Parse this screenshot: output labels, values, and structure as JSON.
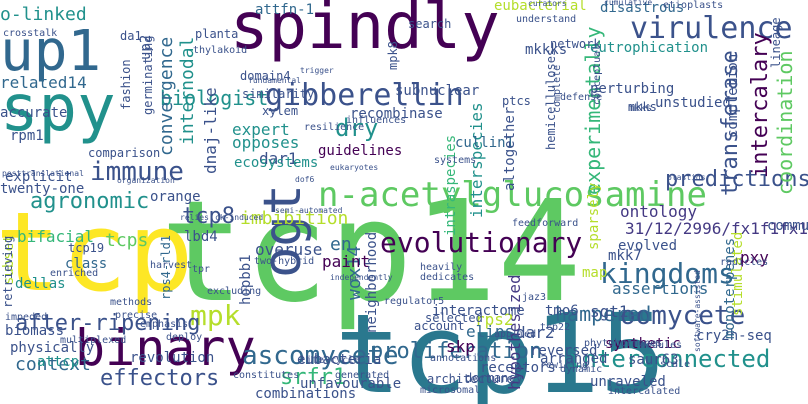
{
  "words": [
    {
      "text": "tcp14",
      "color": "#5ec962"
    },
    {
      "text": "tcp15",
      "color": "#2a788e"
    },
    {
      "text": "tcp",
      "color": "#fde725"
    },
    {
      "text": "spindly",
      "color": "#440154"
    },
    {
      "text": "spy",
      "color": "#21918c"
    },
    {
      "text": "up1",
      "color": "#31688e"
    },
    {
      "text": "binary",
      "color": "#440154"
    },
    {
      "text": "ogt",
      "color": "#3b528b"
    },
    {
      "text": "n-acetylglucosamine",
      "color": "#5ec962"
    },
    {
      "text": "gibberellin",
      "color": "#3b528b"
    },
    {
      "text": "virulence",
      "color": "#3b528b"
    },
    {
      "text": "evolutionary",
      "color": "#440154"
    },
    {
      "text": "kingdoms",
      "color": "#31688e"
    },
    {
      "text": "ascomycete",
      "color": "#31688e"
    },
    {
      "text": "oomycete",
      "color": "#3b528b"
    },
    {
      "text": "immune",
      "color": "#3b528b"
    },
    {
      "text": "interconnected",
      "color": "#21918c"
    },
    {
      "text": "proliferation",
      "color": "#31688e"
    },
    {
      "text": "mpk",
      "color": "#b5de2b"
    },
    {
      "text": "effectors",
      "color": "#3b528b"
    },
    {
      "text": "after-ripening",
      "color": "#3b528b"
    },
    {
      "text": "agronomic",
      "color": "#21918c"
    },
    {
      "text": "biologist",
      "color": "#21918c"
    },
    {
      "text": "tcp8",
      "color": "#3b528b"
    },
    {
      "text": "transferase",
      "color": "#3b528b"
    },
    {
      "text": "imbibition",
      "color": "#b5de2b"
    },
    {
      "text": "experimentally",
      "color": "#35b779"
    },
    {
      "text": "intercalary",
      "color": "#440154"
    },
    {
      "text": "predictions",
      "color": "#3b528b"
    },
    {
      "text": "coordination",
      "color": "#5ec962"
    },
    {
      "text": "hampered",
      "color": "#31688e"
    },
    {
      "text": "srfr1",
      "color": "#35b779"
    },
    {
      "text": "context",
      "color": "#31688e"
    },
    {
      "text": "31/12/2996/fx1f1fx1",
      "color": "#443983"
    },
    {
      "text": "convergence",
      "color": "#31688e"
    },
    {
      "text": "dry",
      "color": "#21918c"
    },
    {
      "text": "wox14",
      "color": "#31688e"
    },
    {
      "text": "internodal",
      "color": "#21918c"
    },
    {
      "text": "interspecies",
      "color": "#21918c"
    },
    {
      "text": "eubacteria",
      "color": "#3b528b"
    },
    {
      "text": "elips",
      "color": "#31688e"
    },
    {
      "text": "hypothesized",
      "color": "#443983"
    },
    {
      "text": "o-linked",
      "color": "#21918c"
    },
    {
      "text": "tcps",
      "color": "#5ec962"
    },
    {
      "text": "assertions",
      "color": "#31688e"
    },
    {
      "text": "en",
      "color": "#31688e"
    },
    {
      "text": "attfn-1",
      "color": "#31688e"
    },
    {
      "text": "related14",
      "color": "#31688e"
    },
    {
      "text": "ontology",
      "color": "#443983"
    },
    {
      "text": "cry2h-seq",
      "color": "#3b528b"
    },
    {
      "text": "mkkks",
      "color": "#3b528b"
    },
    {
      "text": "sgt1",
      "color": "#3b528b"
    },
    {
      "text": "accurate",
      "color": "#3b528b"
    },
    {
      "text": "disastrous",
      "color": "#31688e"
    },
    {
      "text": "skp",
      "color": "#440154"
    },
    {
      "text": "rps2",
      "color": "#b5de2b"
    },
    {
      "text": "dar2",
      "color": "#3b528b"
    },
    {
      "text": "mkk7",
      "color": "#3b528b"
    },
    {
      "text": "evolved",
      "color": "#3b528b"
    },
    {
      "text": "class",
      "color": "#31688e"
    },
    {
      "text": "dar1",
      "color": "#3b528b"
    },
    {
      "text": "eutrophication",
      "color": "#21918c"
    },
    {
      "text": "expert",
      "color": "#21918c"
    },
    {
      "text": "opposes",
      "color": "#21918c"
    },
    {
      "text": "overuse",
      "color": "#3b528b"
    },
    {
      "text": "paint",
      "color": "#440154"
    },
    {
      "text": "ecosystems",
      "color": "#21918c"
    },
    {
      "text": "guidelines",
      "color": "#440154"
    },
    {
      "text": "bifacial",
      "color": "#35b779"
    },
    {
      "text": "monoterpenes",
      "color": "#31688e"
    },
    {
      "text": "dnaj-like",
      "color": "#3b528b"
    },
    {
      "text": "hopbb1",
      "color": "#3b528b"
    },
    {
      "text": "stimulated",
      "color": "#b5de2b"
    },
    {
      "text": "lbd4",
      "color": "#3b528b"
    },
    {
      "text": "unstudied",
      "color": "#3b528b"
    },
    {
      "text": "dellas",
      "color": "#21918c"
    },
    {
      "text": "biomass",
      "color": "#3b528b"
    },
    {
      "text": "physically",
      "color": "#3b528b"
    },
    {
      "text": "revolution",
      "color": "#3b528b"
    },
    {
      "text": "unraveled",
      "color": "#3b528b"
    },
    {
      "text": "receptors",
      "color": "#3b528b"
    },
    {
      "text": "dormancy",
      "color": "#3b528b"
    },
    {
      "text": "cullin1",
      "color": "#31688e"
    },
    {
      "text": "rpm1",
      "color": "#3b528b"
    },
    {
      "text": "explicit",
      "color": "#3b528b"
    },
    {
      "text": "twenty-one",
      "color": "#3b528b"
    },
    {
      "text": "orange",
      "color": "#3b528b"
    },
    {
      "text": "subnuclear",
      "color": "#3b528b"
    },
    {
      "text": "recombinase",
      "color": "#3b528b"
    },
    {
      "text": "intraspecies",
      "color": "#35b779"
    },
    {
      "text": "altogether",
      "color": "#3b528b"
    },
    {
      "text": "completion",
      "color": "#3b528b"
    },
    {
      "text": "communities",
      "color": "#3b528b"
    },
    {
      "text": "pxy",
      "color": "#440154"
    },
    {
      "text": "saur63",
      "color": "#3b528b"
    },
    {
      "text": "synthetic",
      "color": "#440154"
    },
    {
      "text": "tmo6",
      "color": "#3b528b"
    },
    {
      "text": "reversed",
      "color": "#3b528b"
    },
    {
      "text": "arranged",
      "color": "#3b528b"
    },
    {
      "text": "combinations",
      "color": "#3b528b"
    },
    {
      "text": "unfavourable",
      "color": "#3b528b"
    },
    {
      "text": "architecture",
      "color": "#3b528b"
    },
    {
      "text": "perturbing",
      "color": "#3b528b"
    },
    {
      "text": "mkks",
      "color": "#3b528b"
    },
    {
      "text": "neighborhood",
      "color": "#3b528b"
    },
    {
      "text": "subset",
      "color": "#b5de2b"
    },
    {
      "text": "attcp",
      "color": "#21918c"
    },
    {
      "text": "tcp19",
      "color": "#3b528b"
    },
    {
      "text": "retrieving",
      "color": "#3b528b"
    },
    {
      "text": "domain4",
      "color": "#3b528b"
    },
    {
      "text": "similarity",
      "color": "#3b528b"
    },
    {
      "text": "planta",
      "color": "#3b528b"
    },
    {
      "text": "da1",
      "color": "#3b528b"
    },
    {
      "text": "up2",
      "color": "#3b528b"
    },
    {
      "text": "search",
      "color": "#3b528b"
    },
    {
      "text": "network",
      "color": "#3b528b"
    },
    {
      "text": "eubacterial",
      "color": "#b5de2b"
    },
    {
      "text": "mpk8",
      "color": "#3b528b"
    },
    {
      "text": "lineage",
      "color": "#3b528b"
    },
    {
      "text": "rps4-rld1",
      "color": "#31688e"
    },
    {
      "text": "comparison",
      "color": "#3b528b"
    },
    {
      "text": "fashion",
      "color": "#3b528b"
    },
    {
      "text": "germinating",
      "color": "#3b528b"
    },
    {
      "text": "crosstalk",
      "color": "#3b528b"
    },
    {
      "text": "xylem",
      "color": "#3b528b"
    },
    {
      "text": "resilience",
      "color": "#3b528b"
    },
    {
      "text": "influences",
      "color": "#3b528b"
    },
    {
      "text": "defense",
      "color": "#3b528b"
    },
    {
      "text": "ptcs",
      "color": "#3b528b"
    },
    {
      "text": "hemicelluloses",
      "color": "#3b528b"
    },
    {
      "text": "sparsely",
      "color": "#b5de2b"
    },
    {
      "text": "feedforward",
      "color": "#3b528b"
    },
    {
      "text": "interactome",
      "color": "#3b528b"
    },
    {
      "text": "selected",
      "color": "#3b528b"
    },
    {
      "text": "account",
      "color": "#3b528b"
    },
    {
      "text": "regulator5",
      "color": "#3b528b"
    },
    {
      "text": "applied",
      "color": "#3b528b"
    },
    {
      "text": "jaz3",
      "color": "#3b528b"
    },
    {
      "text": "tcp22",
      "color": "#3b528b"
    },
    {
      "text": "map",
      "color": "#b5de2b"
    },
    {
      "text": "two-hybrid",
      "color": "#3b528b"
    },
    {
      "text": "enriched",
      "color": "#3b528b"
    },
    {
      "text": "methods",
      "color": "#3b528b"
    },
    {
      "text": "precise",
      "color": "#3b528b"
    },
    {
      "text": "harvest",
      "color": "#3b528b"
    },
    {
      "text": "emphasis",
      "color": "#3b528b"
    },
    {
      "text": "multiplexed",
      "color": "#3b528b"
    },
    {
      "text": "deploy",
      "color": "#3b528b"
    },
    {
      "text": "life-cycle",
      "color": "#3b528b"
    },
    {
      "text": "annotations",
      "color": "#3b528b"
    },
    {
      "text": "dynamic",
      "color": "#3b528b"
    },
    {
      "text": "microsomal",
      "color": "#3b528b"
    },
    {
      "text": "intercalated",
      "color": "#3b528b"
    },
    {
      "text": "modules",
      "color": "#3b528b"
    },
    {
      "text": "phytohormones",
      "color": "#3b528b"
    },
    {
      "text": "rewiring",
      "color": "#3b528b"
    },
    {
      "text": "generated",
      "color": "#3b528b"
    },
    {
      "text": "constitutes",
      "color": "#3b528b"
    },
    {
      "text": "understand",
      "color": "#3b528b"
    },
    {
      "text": "curators",
      "color": "#3b528b"
    },
    {
      "text": "cumulative",
      "color": "#3b528b"
    },
    {
      "text": "etioplasts",
      "color": "#3b528b"
    },
    {
      "text": "thylakoid",
      "color": "#3b528b"
    },
    {
      "text": "fundamental",
      "color": "#3b528b"
    },
    {
      "text": "trigger",
      "color": "#3b528b"
    },
    {
      "text": "systems",
      "color": "#3b528b"
    },
    {
      "text": "eukaryotes",
      "color": "#3b528b"
    },
    {
      "text": "dof6",
      "color": "#3b528b"
    },
    {
      "text": "posttranslational",
      "color": "#3b528b"
    },
    {
      "text": "organization",
      "color": "#3b528b"
    },
    {
      "text": "relies",
      "color": "#3b528b"
    },
    {
      "text": "ck-induced",
      "color": "#3b528b"
    },
    {
      "text": "semi-automated",
      "color": "#3b528b"
    },
    {
      "text": "heavily",
      "color": "#3b528b"
    },
    {
      "text": "dedicates",
      "color": "#3b528b"
    },
    {
      "text": "independently",
      "color": "#3b528b"
    },
    {
      "text": "tpr",
      "color": "#3b528b"
    },
    {
      "text": "excluding",
      "color": "#3b528b"
    },
    {
      "text": "impeded",
      "color": "#3b528b"
    },
    {
      "text": "scale",
      "color": "#3b528b"
    },
    {
      "text": "complete",
      "color": "#3b528b"
    },
    {
      "text": "conceptual",
      "color": "#3b528b"
    },
    {
      "text": "mkks",
      "color": "#3b528b"
    },
    {
      "text": "software-assisted",
      "color": "#3b528b"
    },
    {
      "text": "plastids",
      "color": "#3b528b"
    },
    {
      "text": "radicles",
      "color": "#3b528b"
    }
  ]
}
